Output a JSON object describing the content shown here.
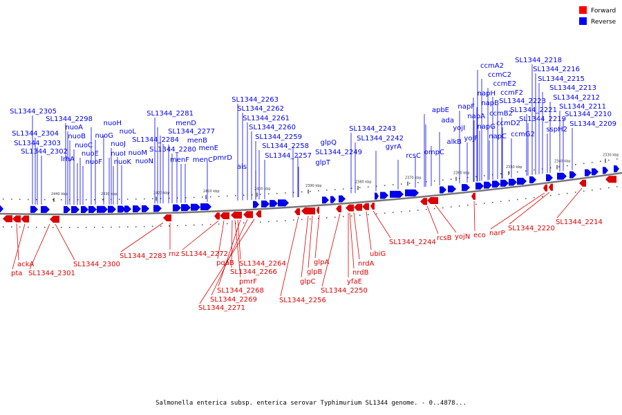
{
  "legend": [
    {
      "label": "Forward",
      "color": "#ff0000"
    },
    {
      "label": "Reverse",
      "color": "#0000ff"
    }
  ],
  "colors": {
    "forward": "#dd0000",
    "reverse": "#0000ee",
    "axis": "#888888"
  },
  "ticks": [
    "2440 kbp",
    "2430 kbp",
    "2420 kbp",
    "2410 kbp",
    "2400 kbp",
    "2390 kbp",
    "2380 kbp",
    "2370 kbp",
    "2360 kbp",
    "2350 kbp",
    "2340 kbp",
    "2330 kbp"
  ],
  "reverse_labels": [
    "SL1344_2305",
    "SL1344_2304",
    "SL1344_2303",
    "SL1344_2302",
    "SL1344_2298",
    "nuoA",
    "nuoB",
    "nuoC",
    "lrhA",
    "nuoE",
    "nuoF",
    "nuoH",
    "nuoG",
    "nuoL",
    "nuoI",
    "nuoJ",
    "nuoK",
    "nuoM",
    "nuoN",
    "SL1344_2281",
    "menD",
    "SL1344_2277",
    "SL1344_2284",
    "menB",
    "SL1344_2280",
    "menE",
    "menF",
    "menC",
    "pmrD",
    "SL1344_2263",
    "SL1344_2262",
    "SL1344_2261",
    "SL1344_2260",
    "SL1344_2259",
    "SL1344_2258",
    "SL1344_2257",
    "ais",
    "glpQ",
    "SL1344_2249",
    "glpT",
    "SL1344_2243",
    "SL1344_2242",
    "gyrA",
    "rcsC",
    "ompC",
    "apbE",
    "ada",
    "alkB",
    "yojI",
    "napF",
    "yojF",
    "napH",
    "napA",
    "napB",
    "napG",
    "ccmA2",
    "ccmC2",
    "ccmE2",
    "ccmF2",
    "SL1344_2223",
    "ccmB2",
    "ccmD2",
    "napC",
    "ccmG2",
    "SL1344_2221",
    "SL1344_2219",
    "sspH2",
    "SL1344_2218",
    "SL1344_2216",
    "SL1344_2215",
    "SL1344_2213",
    "SL1344_2212",
    "SL1344_2211",
    "SL1344_2210",
    "SL1344_2209"
  ],
  "forward_labels": [
    "ackA",
    "pta",
    "SL1344_2301",
    "SL1344_2300",
    "SL1344_2283",
    "rnz",
    "SL1344_2272",
    "pqaB",
    "SL1344_2264",
    "SL1344_2266",
    "pmrF",
    "SL1344_2268",
    "SL1344_2269",
    "SL1344_2271",
    "glpA",
    "glpB",
    "glpC",
    "SL1344_2256",
    "nrdA",
    "nrdB",
    "yfaE",
    "SL1344_2250",
    "ubiG",
    "SL1344_2244",
    "rcsB",
    "yojN",
    "eco",
    "narP",
    "SL1344_2220",
    "SL1344_2214"
  ],
  "caption": "Salmonella enterica subsp. enterica serovar Typhimurium SL1344 genome. - 0..4878..."
}
